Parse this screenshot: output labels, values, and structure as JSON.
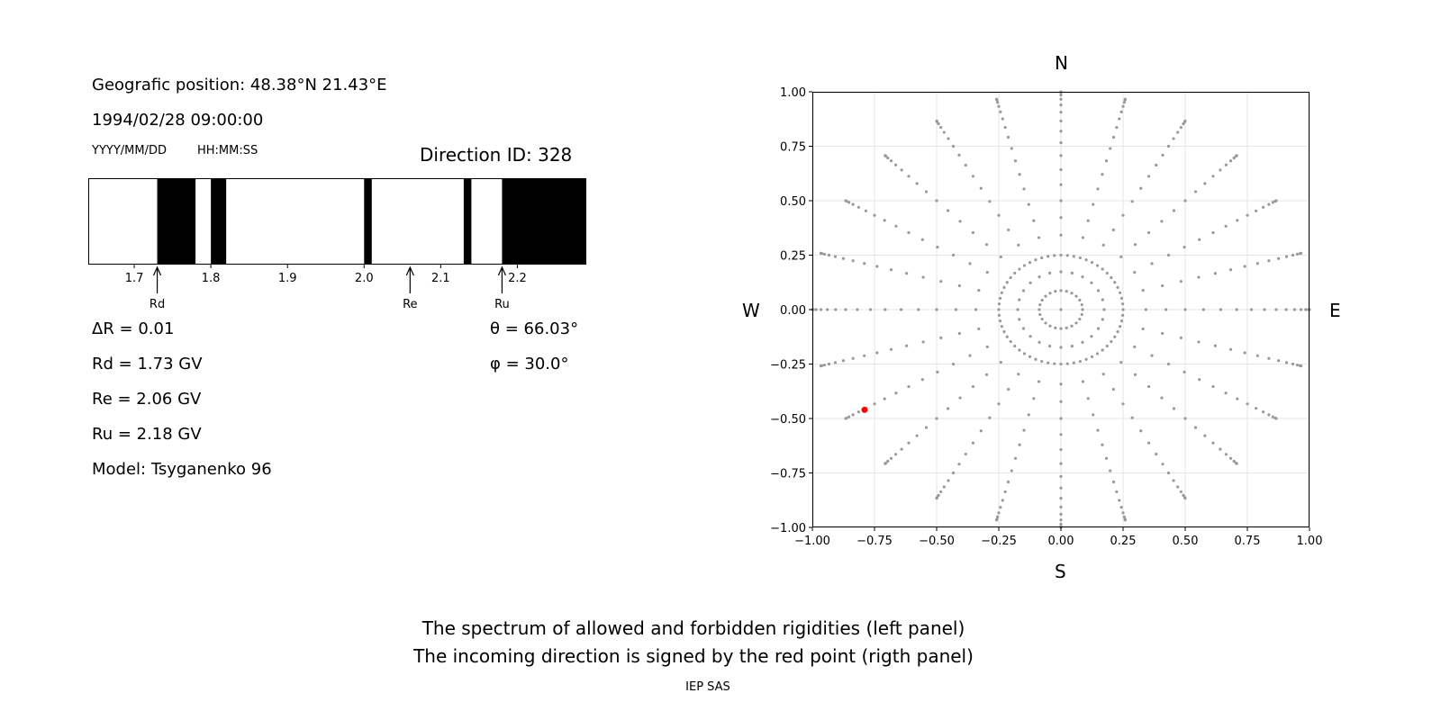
{
  "left_panel": {
    "position_line": "Geografic position: 48.38°N 21.43°E",
    "datetime": "1994/02/28 09:00:00",
    "date_format_label": "YYYY/MM/DD",
    "time_format_label": "HH:MM:SS",
    "direction_id": "Direction ID: 328",
    "delta_r": "ΔR = 0.01",
    "rd": "Rd = 1.73 GV",
    "re": "Re = 2.06 GV",
    "ru": "Ru = 2.18 GV",
    "model": "Model: Tsyganenko 96",
    "theta": "θ = 66.03°",
    "phi": "φ = 30.0°"
  },
  "right_panel": {
    "north": "N",
    "south": "S",
    "west": "W",
    "east": "E"
  },
  "footer": {
    "caption_line1": "The spectrum of allowed and forbidden rigidities (left panel)",
    "caption_line2": "The incoming direction is signed by the red point (rigth panel)",
    "institution": "IEP SAS"
  },
  "colors": {
    "forbidden": "#000000",
    "allowed": "#ffffff",
    "grid_point": "#999999",
    "selected_point": "#ff0000"
  },
  "chart_data": [
    {
      "type": "bar",
      "name": "rigidity-spectrum",
      "xlim": [
        1.64,
        2.29
      ],
      "xticks": [
        1.7,
        1.8,
        1.9,
        2.0,
        2.1,
        2.2
      ],
      "xtick_labels": [
        "1.7",
        "1.8",
        "1.9",
        "2.0",
        "2.1",
        "2.2"
      ],
      "forbidden_bands": [
        [
          1.73,
          1.78
        ],
        [
          1.8,
          1.82
        ],
        [
          2.0,
          2.01
        ],
        [
          2.13,
          2.14
        ],
        [
          2.18,
          2.29
        ]
      ],
      "markers": [
        {
          "label": "Rd",
          "value": 1.73
        },
        {
          "label": "Re",
          "value": 2.06
        },
        {
          "label": "Ru",
          "value": 2.18
        }
      ]
    },
    {
      "type": "scatter",
      "name": "direction-grid",
      "xlim": [
        -1,
        1
      ],
      "ylim": [
        -1,
        1
      ],
      "xticks": [
        -1.0,
        -0.75,
        -0.5,
        -0.25,
        0.0,
        0.25,
        0.5,
        0.75,
        1.0
      ],
      "xtick_labels": [
        "−1.00",
        "−0.75",
        "−0.50",
        "−0.25",
        "0.00",
        "0.25",
        "0.50",
        "0.75",
        "1.00"
      ],
      "yticks": [
        1.0,
        0.75,
        0.5,
        0.25,
        0.0,
        -0.25,
        -0.5,
        -0.75,
        -1.0
      ],
      "ytick_labels": [
        "1.00",
        "0.75",
        "0.50",
        "0.25",
        "0.00",
        "−0.25",
        "−0.50",
        "−0.75",
        "−1.00"
      ],
      "grid": true,
      "grid_rule": "center point plus rays every 15° azimuth; radius = sin(zenith), zenith from 5° to 90° in 5° steps, full 360° at radius 0.25",
      "selected_point": {
        "x": -0.79,
        "y": -0.46,
        "azimuth_deg": 30.0,
        "zenith_deg": 66.03
      }
    }
  ]
}
